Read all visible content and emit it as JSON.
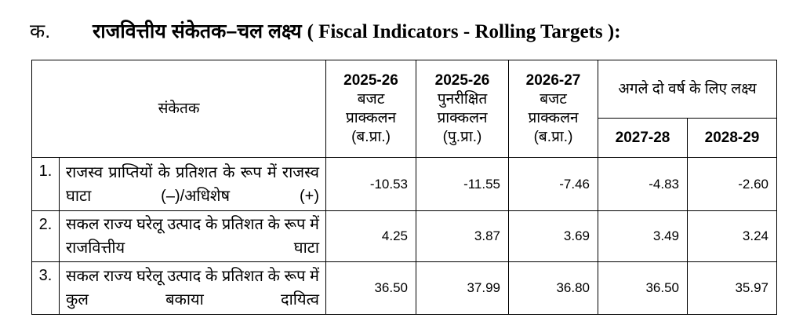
{
  "header": {
    "number": "क.",
    "title": "राजवित्तीय संकेतक–चल लक्ष्य",
    "english_title": "( Fiscal Indicators - Rolling Targets ):"
  },
  "table": {
    "indicator_header": "संकेतक",
    "columns": [
      {
        "year": "2025-26",
        "lines": [
          "बजट",
          "प्राक्कलन",
          "(ब.प्रा.)"
        ]
      },
      {
        "year": "2025-26",
        "lines": [
          "पुनरीक्षित",
          "प्राक्कलन",
          "(पु.प्रा.)"
        ]
      },
      {
        "year": "2026-27",
        "lines": [
          "बजट",
          "प्राक्कलन",
          "(ब.प्रा.)"
        ]
      }
    ],
    "target_group": "अगले दो वर्ष के लिए लक्ष्य",
    "target_years": [
      "2027-28",
      "2028-29"
    ],
    "rows": [
      {
        "number": "1.",
        "label": "राजस्व प्राप्तियों के प्रतिशत के रूप में राजस्व घाटा (–)/अधिशेष (+)",
        "values": [
          "-10.53",
          "-11.55",
          "-7.46",
          "-4.83",
          "-2.60"
        ]
      },
      {
        "number": "2.",
        "label": "सकल राज्य घरेलू उत्पाद के प्रतिशत के रूप में राजवित्तीय घाटा",
        "values": [
          "4.25",
          "3.87",
          "3.69",
          "3.49",
          "3.24"
        ]
      },
      {
        "number": "3.",
        "label": "सकल राज्य घरेलू उत्पाद के प्रतिशत के रूप में कुल बकाया दायित्व",
        "values": [
          "36.50",
          "37.99",
          "36.80",
          "36.50",
          "35.97"
        ]
      }
    ]
  }
}
